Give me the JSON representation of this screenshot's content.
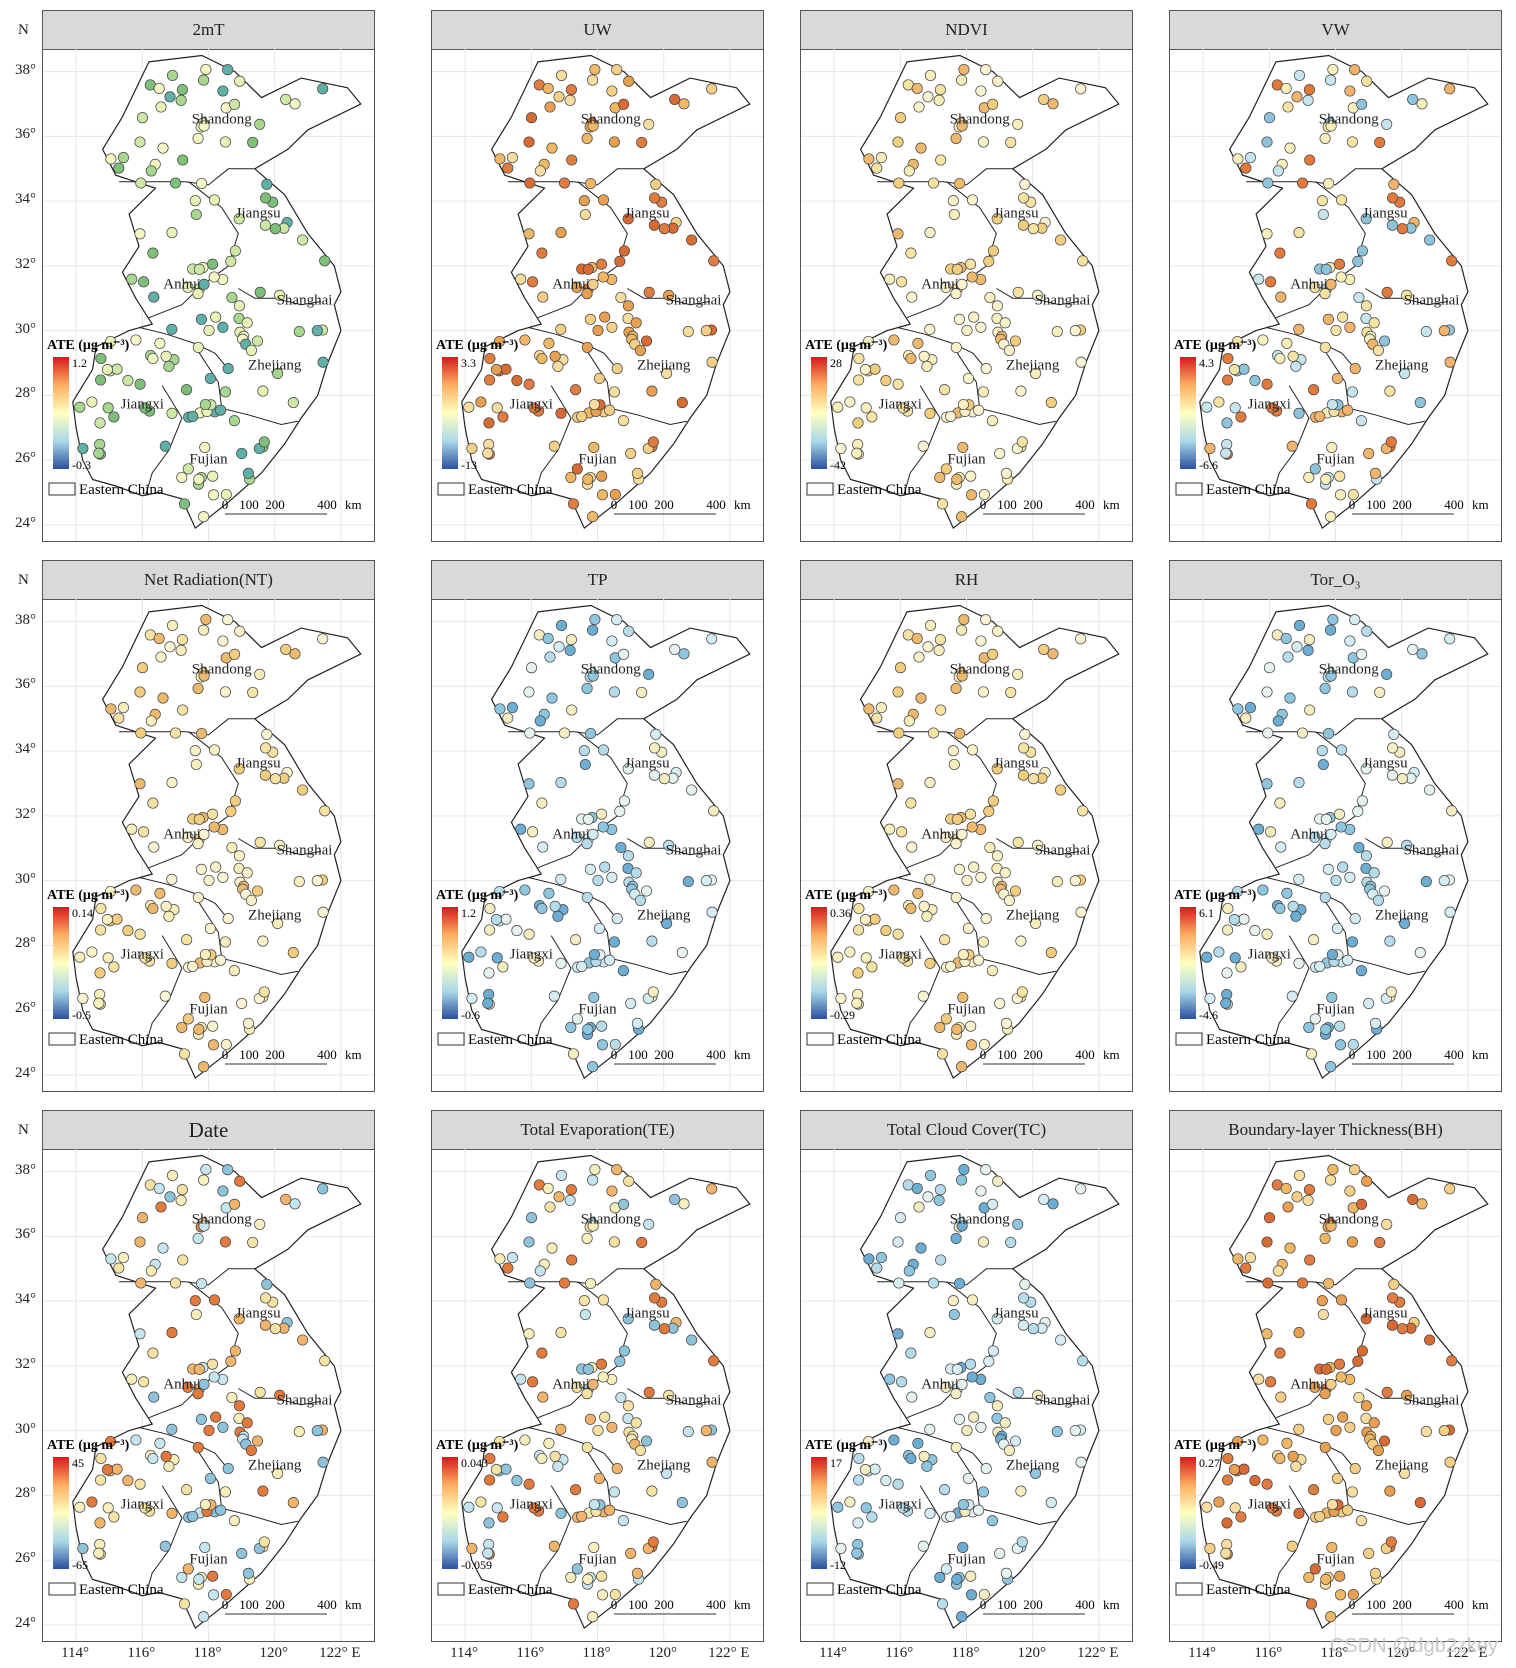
{
  "map": {
    "lat_ticks": [
      "38°",
      "36°",
      "34°",
      "32°",
      "30°",
      "28°",
      "26°",
      "24°"
    ],
    "lon_ticks": [
      "114°",
      "116°",
      "118°",
      "120°",
      "122° E"
    ],
    "north_label": "N",
    "provinces": [
      "Shandong",
      "Jiangsu",
      "Anhui",
      "Shanghai",
      "Zhejiang",
      "Jiangxi",
      "Fujian"
    ],
    "legend_title": "ATE (μg m⁻³)",
    "region_legend": "Eastern China",
    "scalebar_labels": [
      "0",
      "100",
      "200",
      "400",
      "km"
    ]
  },
  "panels": [
    {
      "title": "2mT",
      "max": "1.2",
      "min": "-0.3",
      "tone": "green"
    },
    {
      "title": "UW",
      "max": "3.3",
      "min": "-13",
      "tone": "orange"
    },
    {
      "title": "NDVI",
      "max": "28",
      "min": "-42",
      "tone": "yellow"
    },
    {
      "title": "VW",
      "max": "4.3",
      "min": "-6.6",
      "tone": "mixed"
    },
    {
      "title": "Net Radiation(NT)",
      "max": "0.14",
      "min": "-0.5",
      "tone": "yellow"
    },
    {
      "title": "TP",
      "max": "1.2",
      "min": "-0.6",
      "tone": "blue"
    },
    {
      "title": "RH",
      "max": "0.36",
      "min": "-0.29",
      "tone": "yellow"
    },
    {
      "title": "Tor_O₃",
      "max": "6.1",
      "min": "-4.6",
      "tone": "blue"
    },
    {
      "title": "Date",
      "max": "45",
      "min": "-65",
      "tone": "mixed"
    },
    {
      "title": "Total Evaporation(TE)",
      "max": "0.043",
      "min": "-0.059",
      "tone": "mixed"
    },
    {
      "title": "Total Cloud Cover(TC)",
      "max": "17",
      "min": "-12",
      "tone": "blue"
    },
    {
      "title": "Boundary-layer Thickness(BH)",
      "max": "0.27",
      "min": "-0.49",
      "tone": "orange"
    }
  ],
  "watermark": "CSDN @dgb2zkey",
  "colors": {
    "frame": "#555555",
    "title_bg": "#d9d9d9",
    "outline": "#222222",
    "grid": "#e6e6e6"
  }
}
